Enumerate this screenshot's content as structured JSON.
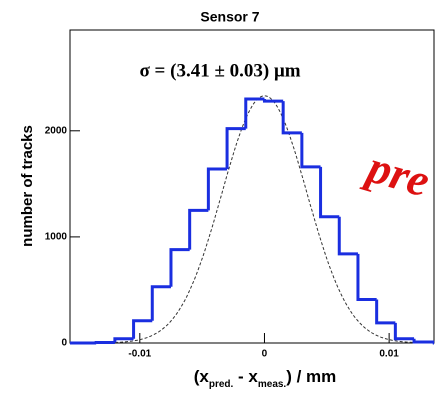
{
  "chart_data": {
    "type": "histogram",
    "title": "Sensor 7",
    "annotation": "σ = (3.41 ± 0.03) μm",
    "overlay_text": "pre",
    "xlabel_parts": [
      "(x",
      "pred.",
      " - x",
      "meas.",
      ") / mm"
    ],
    "ylabel": "number of tracks",
    "bins": [
      -0.0135,
      -0.012,
      -0.0105,
      -0.009,
      -0.0075,
      -0.006,
      -0.0045,
      -0.003,
      -0.0015,
      0,
      0.0015,
      0.003,
      0.0045,
      0.006,
      0.0075,
      0.009,
      0.0105,
      0.012,
      0.0135
    ],
    "counts": [
      5,
      40,
      210,
      530,
      880,
      1250,
      1640,
      2020,
      2300,
      2280,
      1980,
      1660,
      1190,
      840,
      410,
      190,
      40,
      10
    ],
    "color": "#1a2ee0",
    "fit": {
      "mean": 0,
      "sigma": 0.00341,
      "amplitude": 2330
    },
    "xlim": [
      -0.0156,
      0.0136
    ],
    "ylim": [
      0,
      2950
    ],
    "xticks": [
      -0.01,
      0,
      0.01
    ],
    "yticks": [
      0,
      1000,
      2000
    ]
  }
}
